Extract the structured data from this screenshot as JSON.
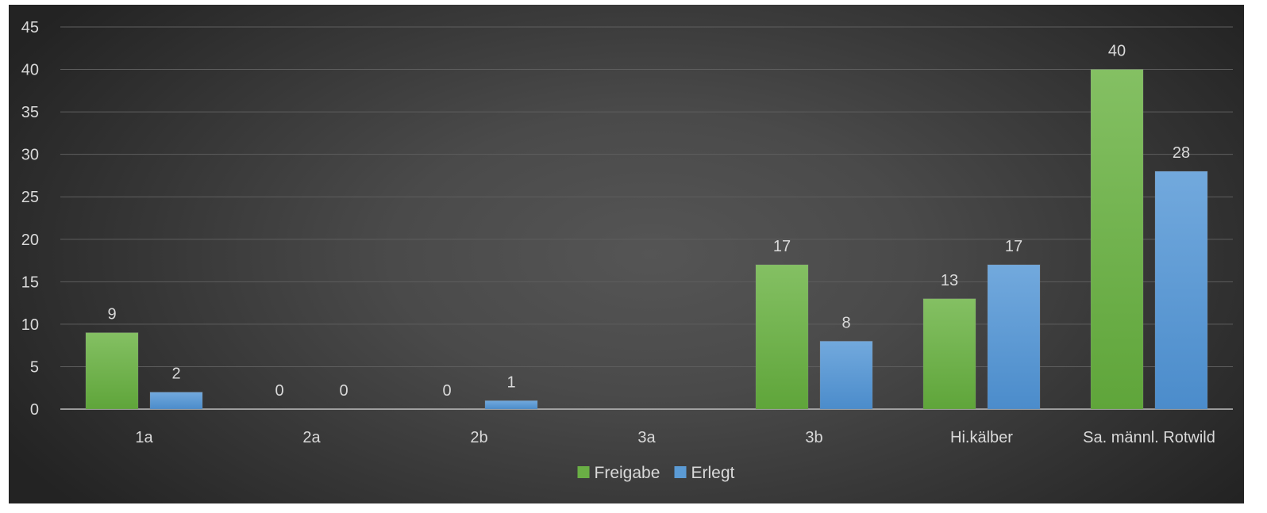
{
  "chart_data": {
    "type": "bar",
    "categories": [
      "1a",
      "2a",
      "2b",
      "3a",
      "3b",
      "Hi.kälber",
      "Sa. männl. Rotwild"
    ],
    "series": [
      {
        "name": "Freigabe",
        "values": [
          9,
          0,
          0,
          null,
          17,
          13,
          40
        ],
        "color": "#6aaf45"
      },
      {
        "name": "Erlegt",
        "values": [
          2,
          0,
          1,
          null,
          8,
          17,
          28
        ],
        "color": "#5b9bd5"
      }
    ],
    "y_ticks": [
      0,
      5,
      10,
      15,
      20,
      25,
      30,
      35,
      40,
      45
    ],
    "ylim": [
      0,
      45
    ],
    "grid": true,
    "legend": "bottom-center",
    "data_labels": true
  }
}
